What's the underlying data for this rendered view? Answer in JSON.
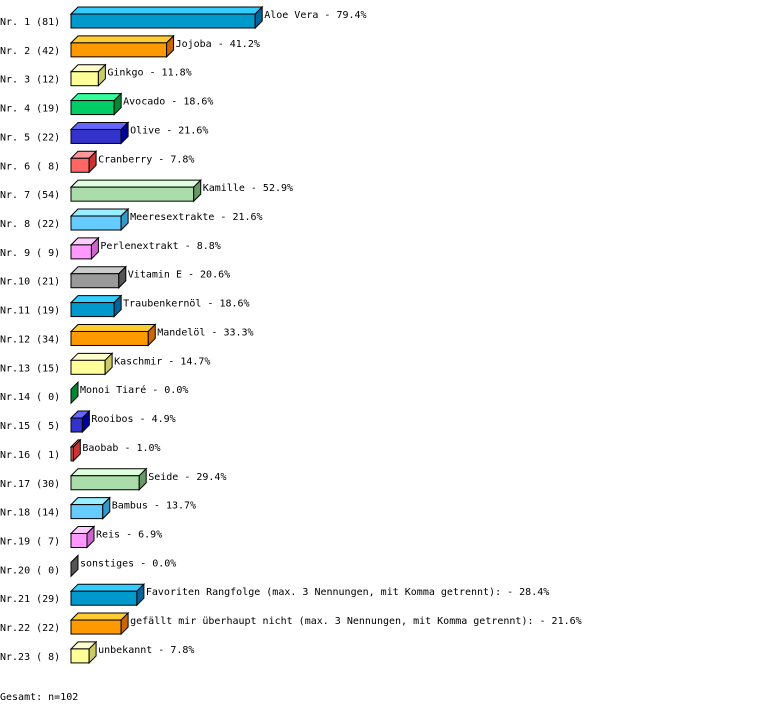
{
  "chart_data": {
    "type": "bar",
    "orientation": "horizontal",
    "style": "3d",
    "xlim": [
      0,
      100
    ],
    "grid": false,
    "rows": [
      {
        "label": "Nr. 1",
        "count": 81,
        "name": "Aloe Vera",
        "value": 79.4
      },
      {
        "label": "Nr. 2",
        "count": 42,
        "name": "Jojoba",
        "value": 41.2
      },
      {
        "label": "Nr. 3",
        "count": 12,
        "name": "Ginkgo",
        "value": 11.8
      },
      {
        "label": "Nr. 4",
        "count": 19,
        "name": "Avocado",
        "value": 18.6
      },
      {
        "label": "Nr. 5",
        "count": 22,
        "name": "Olive",
        "value": 21.6
      },
      {
        "label": "Nr. 6",
        "count": 8,
        "name": "Cranberry",
        "value": 7.8
      },
      {
        "label": "Nr. 7",
        "count": 54,
        "name": "Kamille",
        "value": 52.9
      },
      {
        "label": "Nr. 8",
        "count": 22,
        "name": "Meeresextrakte",
        "value": 21.6
      },
      {
        "label": "Nr. 9",
        "count": 9,
        "name": "Perlenextrakt",
        "value": 8.8
      },
      {
        "label": "Nr.10",
        "count": 21,
        "name": "Vitamin E",
        "value": 20.6
      },
      {
        "label": "Nr.11",
        "count": 19,
        "name": "Traubenkernöl",
        "value": 18.6
      },
      {
        "label": "Nr.12",
        "count": 34,
        "name": "Mandelöl",
        "value": 33.3
      },
      {
        "label": "Nr.13",
        "count": 15,
        "name": "Kaschmir",
        "value": 14.7
      },
      {
        "label": "Nr.14",
        "count": 0,
        "name": "Monoi Tiaré",
        "value": 0.0
      },
      {
        "label": "Nr.15",
        "count": 5,
        "name": "Rooibos",
        "value": 4.9
      },
      {
        "label": "Nr.16",
        "count": 1,
        "name": "Baobab",
        "value": 1.0
      },
      {
        "label": "Nr.17",
        "count": 30,
        "name": "Seide",
        "value": 29.4
      },
      {
        "label": "Nr.18",
        "count": 14,
        "name": "Bambus",
        "value": 13.7
      },
      {
        "label": "Nr.19",
        "count": 7,
        "name": "Reis",
        "value": 6.9
      },
      {
        "label": "Nr.20",
        "count": 0,
        "name": "sonstiges",
        "value": 0.0
      },
      {
        "label": "Nr.21",
        "count": 29,
        "name": "Favoriten Rangfolge (max. 3 Nennungen, mit Komma getrennt):",
        "value": 28.4
      },
      {
        "label": "Nr.22",
        "count": 22,
        "name": "gefällt mir überhaupt nicht (max. 3 Nennungen, mit Komma getrennt):",
        "value": 21.6
      },
      {
        "label": "Nr.23",
        "count": 8,
        "name": "unbekannt",
        "value": 7.8
      }
    ],
    "palette": [
      {
        "front": "#0099cc",
        "top": "#33ccff",
        "side": "#006699"
      },
      {
        "front": "#ff9900",
        "top": "#ffcc33",
        "side": "#cc6600"
      },
      {
        "front": "#ffff99",
        "top": "#ffffcc",
        "side": "#cccc66"
      },
      {
        "front": "#00cc66",
        "top": "#33ff99",
        "side": "#008833"
      },
      {
        "front": "#3333cc",
        "top": "#6666ff",
        "side": "#000099"
      },
      {
        "front": "#ff6666",
        "top": "#ff9999",
        "side": "#cc3333"
      },
      {
        "front": "#aaddaa",
        "top": "#ddffdd",
        "side": "#669966"
      },
      {
        "front": "#66ccff",
        "top": "#99eeff",
        "side": "#3399cc"
      },
      {
        "front": "#ff99ff",
        "top": "#ffccff",
        "side": "#cc66cc"
      },
      {
        "front": "#999999",
        "top": "#cccccc",
        "side": "#555555"
      }
    ]
  },
  "footer": {
    "total": "Gesamt: n=102"
  }
}
